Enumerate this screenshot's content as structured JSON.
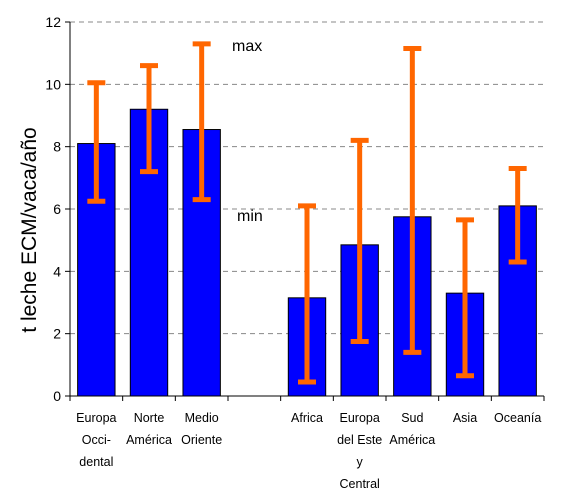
{
  "chart_data": {
    "type": "bar",
    "title": "",
    "xlabel": "",
    "ylabel": "t leche ECM/vaca/año",
    "ylim": [
      0,
      12
    ],
    "yticks": [
      0,
      2,
      4,
      6,
      8,
      10,
      12
    ],
    "grid": "horizontal dashed",
    "categories": [
      [
        "Europa",
        "Occi-",
        "dental"
      ],
      [
        "Norte",
        "América"
      ],
      [
        "Medio",
        "Oriente"
      ],
      [],
      [
        "Africa"
      ],
      [
        "Europa",
        "del Este",
        "y",
        "Central"
      ],
      [
        "Sud",
        "América"
      ],
      [
        "Asia"
      ],
      [
        "Oceanía"
      ]
    ],
    "values": [
      8.1,
      9.2,
      8.55,
      null,
      3.15,
      4.85,
      5.75,
      3.3,
      6.1
    ],
    "error_bars": {
      "min": [
        6.25,
        7.2,
        6.3,
        null,
        0.45,
        1.75,
        1.4,
        0.65,
        4.3
      ],
      "max": [
        10.05,
        10.6,
        11.3,
        null,
        6.1,
        8.2,
        11.15,
        5.65,
        7.3
      ]
    },
    "annotations": [
      "max",
      "min"
    ],
    "colors": {
      "bar": "#0000FF",
      "bar_edge": "#000000",
      "error_bar": "#FF6600",
      "grid": "#888888"
    }
  }
}
